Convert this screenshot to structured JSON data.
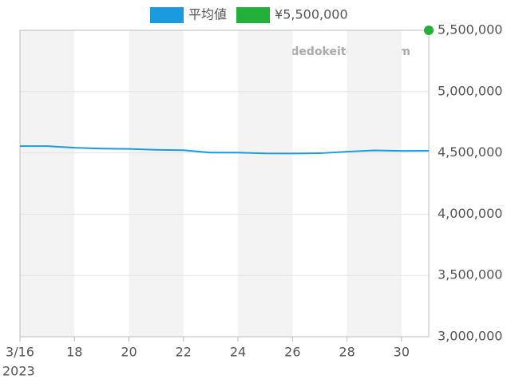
{
  "chart_data": {
    "type": "line",
    "watermark": "udedokeitoushi.com",
    "x": [
      "2023-03-16",
      "2023-03-17",
      "2023-03-18",
      "2023-03-19",
      "2023-03-20",
      "2023-03-21",
      "2023-03-22",
      "2023-03-23",
      "2023-03-24",
      "2023-03-25",
      "2023-03-26",
      "2023-03-27",
      "2023-03-28",
      "2023-03-29",
      "2023-03-30",
      "2023-03-31"
    ],
    "series": [
      {
        "name": "平均値",
        "color": "#1a9be0",
        "values": [
          4555000,
          4555000,
          4542000,
          4535000,
          4532000,
          4525000,
          4522000,
          4502000,
          4502000,
          4496000,
          4495000,
          4497000,
          4510000,
          4520000,
          4516000,
          4517000
        ]
      },
      {
        "name": "¥5,500,000",
        "color": "#22b03a",
        "values": [
          null,
          null,
          null,
          null,
          null,
          null,
          null,
          null,
          null,
          null,
          null,
          null,
          null,
          null,
          null,
          5500000
        ]
      }
    ],
    "xlim": [
      "2023-03-16",
      "2023-03-31"
    ],
    "xticks": [
      {
        "value": "2023-03-16",
        "label": "3/16"
      },
      {
        "value": "2023-03-18",
        "label": "18"
      },
      {
        "value": "2023-03-20",
        "label": "20"
      },
      {
        "value": "2023-03-22",
        "label": "22"
      },
      {
        "value": "2023-03-24",
        "label": "24"
      },
      {
        "value": "2023-03-26",
        "label": "26"
      },
      {
        "value": "2023-03-28",
        "label": "28"
      },
      {
        "value": "2023-03-30",
        "label": "30"
      }
    ],
    "xtick_year_label": "2023",
    "ylim": [
      3000000,
      5500000
    ],
    "yticks": [
      {
        "value": 3000000,
        "label": "3,000,000"
      },
      {
        "value": 3500000,
        "label": "3,500,000"
      },
      {
        "value": 4000000,
        "label": "4,000,000"
      },
      {
        "value": 4500000,
        "label": "4,500,000"
      },
      {
        "value": 5000000,
        "label": "5,000,000"
      },
      {
        "value": 5500000,
        "label": "5,500,000"
      }
    ],
    "grid": true
  }
}
